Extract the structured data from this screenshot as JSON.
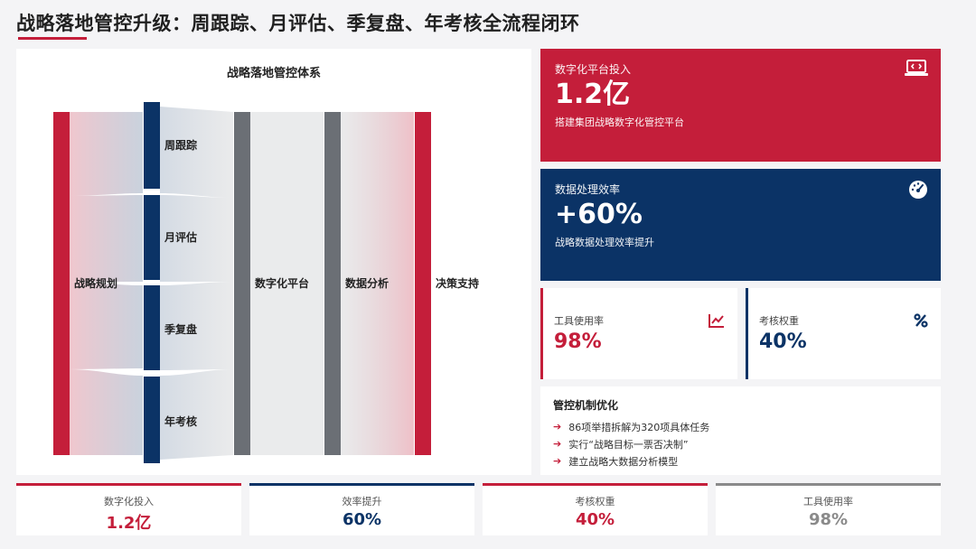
{
  "page": {
    "title": "战略落地管控升级：周跟踪、月评估、季复盘、年考核全流程闭环"
  },
  "diagram": {
    "title": "战略落地管控体系",
    "nodes": {
      "source": "战略规划",
      "cycles": [
        "周跟踪",
        "月评估",
        "季复盘",
        "年考核"
      ],
      "platform": "数字化平台",
      "analysis": "数据分析",
      "decision": "决策支持"
    },
    "colors": {
      "red": "#c41e3a",
      "navy": "#0b3366",
      "gray": "#6b6f75"
    }
  },
  "kpi_cards": [
    {
      "label": "数字化平台投入",
      "value": "1.2亿",
      "sub": "搭建集团战略数字化管控平台",
      "icon": "laptop-code-icon",
      "color": "#c41e3a"
    },
    {
      "label": "数据处理效率",
      "value": "+60%",
      "sub": "战略数据处理效率提升",
      "icon": "gauge-icon",
      "color": "#0b3366"
    }
  ],
  "small_cards": [
    {
      "label": "工具使用率",
      "value": "98%",
      "icon": "line-chart-icon",
      "color": "#c41e3a"
    },
    {
      "label": "考核权重",
      "value": "40%",
      "icon": "percent-icon",
      "color": "#0b3366"
    }
  ],
  "mechanism": {
    "title": "管控机制优化",
    "items": [
      "86项举措拆解为320项具体任务",
      "实行“战略目标一票否决制”",
      "建立战略大数据分析模型"
    ]
  },
  "bottom_stats": [
    {
      "label": "数字化投入",
      "value": "1.2亿",
      "color": "#c41e3a"
    },
    {
      "label": "效率提升",
      "value": "60%",
      "color": "#0b3366"
    },
    {
      "label": "考核权重",
      "value": "40%",
      "color": "#c41e3a"
    },
    {
      "label": "工具使用率",
      "value": "98%",
      "color": "#8a8a8a"
    }
  ]
}
